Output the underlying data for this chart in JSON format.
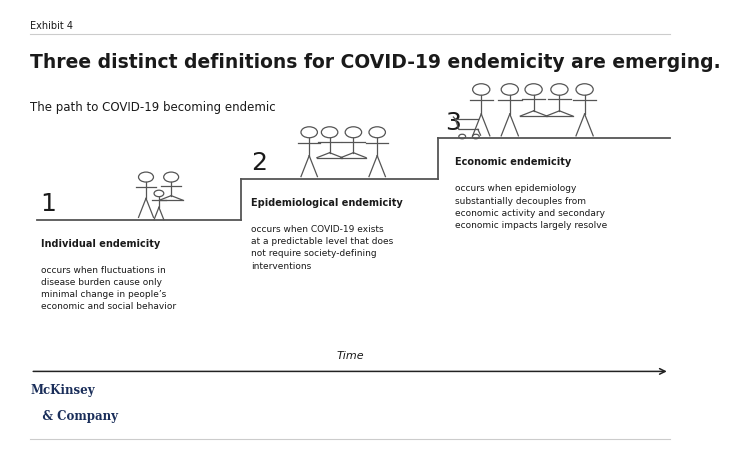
{
  "background_color": "#ffffff",
  "exhibit_label": "Exhibit 4",
  "title": "Three distinct definitions for COVID-19 endemicity are emerging.",
  "subtitle": "The path to COVID-19 becoming endemic",
  "title_fontsize": 13.5,
  "subtitle_fontsize": 8.5,
  "exhibit_fontsize": 7,
  "text_color": "#1a1a1a",
  "line_color": "#555555",
  "time_label": "Time",
  "step1_number": "1",
  "step1_title": "Individual endemicity",
  "step1_body": "occurs when fluctuations in\ndisease burden cause only\nminimal change in people’s\neconomic and social behavior",
  "step2_number": "2",
  "step2_title": "Epidemiological endemicity",
  "step2_body": "occurs when COVID-19 exists\nat a predictable level that does\nnot require society-defining\ninterventions",
  "step3_number": "3",
  "step3_title": "Economic endemicity",
  "step3_body": "occurs when epidemiology\nsubstantially decouples from\neconomic activity and secondary\neconomic impacts largely resolve",
  "mckinsey_line1": "McKinsey",
  "mckinsey_line2": "   & Company",
  "figure_color": "#555555",
  "arrow_color": "#222222",
  "rule_color": "#cccccc"
}
